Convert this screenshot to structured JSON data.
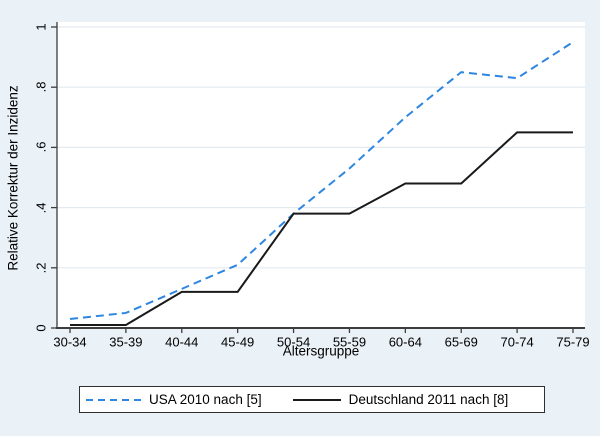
{
  "colors": {
    "background": "#EAF1F7",
    "plot_background": "#FFFFFF",
    "gridline": "#E3EAF1",
    "axis": "#3D3D3D",
    "text": "#000000",
    "legend_border": "#2F2F2F",
    "usa_blue": "#2E86E0",
    "deutschland_black": "#1A1A1A"
  },
  "chart_data": {
    "type": "line",
    "title": "",
    "xlabel": "Altersgruppe",
    "ylabel": "Relative Korrektur der Inzidenz",
    "categories": [
      "30-34",
      "35-39",
      "40-44",
      "45-49",
      "50-54",
      "55-59",
      "60-64",
      "65-69",
      "70-74",
      "75-79"
    ],
    "series": [
      {
        "id": "usa",
        "name": "USA 2010 nach [5]",
        "style": "dashed",
        "color": "#2E86E0",
        "values": [
          0.03,
          0.05,
          0.13,
          0.21,
          0.38,
          0.53,
          0.7,
          0.85,
          0.83,
          0.95
        ]
      },
      {
        "id": "deutschland",
        "name": "Deutschland 2011 nach [8]",
        "style": "solid",
        "color": "#1A1A1A",
        "values": [
          0.01,
          0.01,
          0.12,
          0.12,
          0.38,
          0.38,
          0.48,
          0.48,
          0.65,
          0.65
        ]
      }
    ],
    "ylim": [
      0,
      1
    ],
    "yticks": [
      {
        "v": 0,
        "label": "0"
      },
      {
        "v": 0.2,
        "label": ".2"
      },
      {
        "v": 0.4,
        "label": ".4"
      },
      {
        "v": 0.6,
        "label": ".6"
      },
      {
        "v": 0.8,
        "label": ".8"
      },
      {
        "v": 1,
        "label": "1"
      }
    ],
    "grid": true,
    "legend_position": "bottom"
  }
}
